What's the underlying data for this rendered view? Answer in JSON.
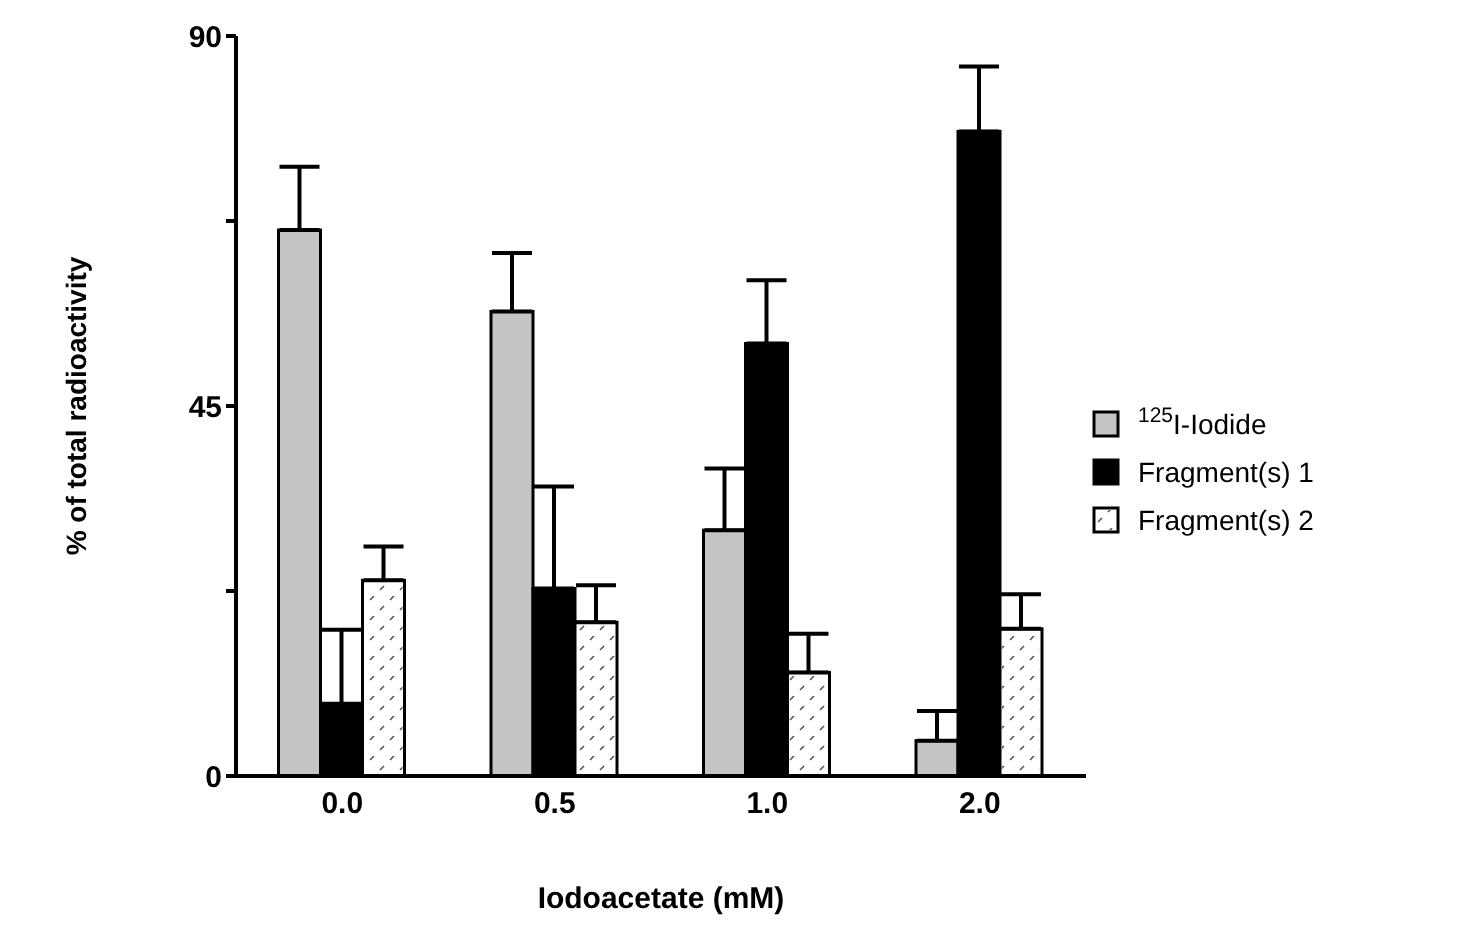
{
  "chart_data": {
    "type": "bar",
    "xlabel": "Iodoacetate  (mM)",
    "ylabel": "% of total radioactivity",
    "categories": [
      "0.0",
      "0.5",
      "1.0",
      "2.0"
    ],
    "series": [
      {
        "name": "$^{125}$I-Iodide",
        "color": "#c4c4c4",
        "values": [
          66.4,
          56.5,
          29.9,
          4.3
        ],
        "errors": [
          7.7,
          7.1,
          7.5,
          3.6
        ]
      },
      {
        "name": "Fragment(s) 1",
        "color": "#000000",
        "values": [
          8.8,
          22.8,
          52.6,
          78.4
        ],
        "errors": [
          9,
          12.4,
          7.7,
          7.9
        ]
      },
      {
        "name": "Fragment(s) 2",
        "color": "#ffffff",
        "values": [
          23.8,
          18.7,
          12.6,
          17.9
        ],
        "errors": [
          4.1,
          4.5,
          4.7,
          4.2
        ]
      }
    ],
    "ylim": [
      0,
      90
    ],
    "yticks": [
      0,
      {
        "value": 22.5,
        "label": null
      },
      45,
      {
        "value": 67.5,
        "label": null
      },
      90
    ],
    "legend": "right"
  }
}
